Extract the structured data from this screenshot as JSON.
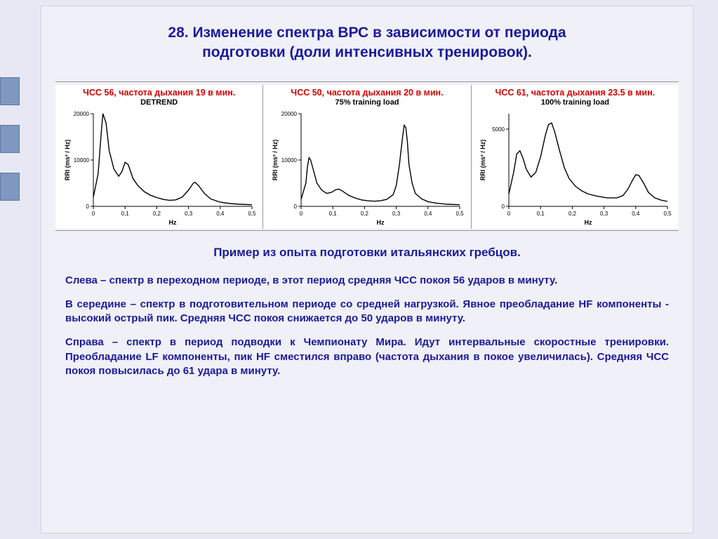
{
  "background_color": "#e8e8f4",
  "slide_bg": "#f0f0f8",
  "title_color": "#1a1a9a",
  "body_color": "#1a1a9a",
  "header_red": "#d00000",
  "title_line1": "28. Изменение спектра ВРС в зависимости от периода",
  "title_line2": "подготовки (доли интенсивных тренировок).",
  "subtitle": "Пример из опыта подготовки итальянских гребцов.",
  "para1": "Слева – спектр в переходном периоде, в этот период средняя ЧСС покоя 56 ударов в минуту.",
  "para2": "В середине – спектр в подготовительном периоде со средней нагрузкой. Явное преобладание HF компоненты - высокий острый пик. Средняя ЧСС покоя снижается до 50 ударов в минуту.",
  "para3": "Справа – спектр в период подводки к Чемпионату Мира. Идут интервальные скоростные тренировки. Преобладание LF компоненты, пик HF сместился вправо (частота дыхания в покое увеличилась). Средняя ЧСС покоя повысилась до 61 удара в минуту.",
  "charts": [
    {
      "header": "ЧСС 56, частота дыхания 19 в мин.",
      "sub": "DETREND",
      "type": "line",
      "xlabel": "Hz",
      "ylabel": "RRI (ms²  / Hz)",
      "xlim": [
        0,
        0.5
      ],
      "ylim": [
        0,
        20000
      ],
      "xticks": [
        0,
        0.1,
        0.2,
        0.3,
        0.4,
        0.5
      ],
      "xtick_labels": [
        "0",
        "0,1",
        "0,2",
        "0,3",
        "0,4",
        "0,5"
      ],
      "yticks": [
        0,
        10000,
        20000
      ],
      "ytick_labels": [
        "0",
        "10000",
        "20000"
      ],
      "line_color": "#000000",
      "line_width": 1.4,
      "background_color": "#ffffff",
      "axis_color": "#000000",
      "tick_fontsize": 8,
      "label_fontsize": 9,
      "data": [
        [
          0.0,
          2000
        ],
        [
          0.015,
          7000
        ],
        [
          0.025,
          16000
        ],
        [
          0.03,
          20000
        ],
        [
          0.04,
          18000
        ],
        [
          0.05,
          12000
        ],
        [
          0.065,
          8000
        ],
        [
          0.08,
          6500
        ],
        [
          0.09,
          7500
        ],
        [
          0.1,
          9500
        ],
        [
          0.11,
          9000
        ],
        [
          0.125,
          6000
        ],
        [
          0.14,
          4500
        ],
        [
          0.16,
          3200
        ],
        [
          0.18,
          2400
        ],
        [
          0.2,
          1900
        ],
        [
          0.22,
          1500
        ],
        [
          0.24,
          1300
        ],
        [
          0.26,
          1400
        ],
        [
          0.28,
          2000
        ],
        [
          0.3,
          3500
        ],
        [
          0.315,
          5000
        ],
        [
          0.32,
          5200
        ],
        [
          0.33,
          4600
        ],
        [
          0.35,
          2800
        ],
        [
          0.37,
          1600
        ],
        [
          0.4,
          900
        ],
        [
          0.43,
          600
        ],
        [
          0.46,
          450
        ],
        [
          0.5,
          350
        ]
      ]
    },
    {
      "header": "ЧСС 50, частота дыхания 20  в мин.",
      "sub": "75% training load",
      "type": "line",
      "xlabel": "Hz",
      "ylabel": "RRI (ms²  / Hz)",
      "xlim": [
        0,
        0.5
      ],
      "ylim": [
        0,
        20000
      ],
      "xticks": [
        0,
        0.1,
        0.2,
        0.3,
        0.4,
        0.5
      ],
      "xtick_labels": [
        "0",
        "0,1",
        "0,2",
        "0,3",
        "0,4",
        "0,5"
      ],
      "yticks": [
        0,
        10000,
        20000
      ],
      "ytick_labels": [
        "0",
        "10000",
        "20000"
      ],
      "line_color": "#000000",
      "line_width": 1.4,
      "background_color": "#ffffff",
      "axis_color": "#000000",
      "tick_fontsize": 8,
      "label_fontsize": 9,
      "data": [
        [
          0.0,
          1500
        ],
        [
          0.015,
          5000
        ],
        [
          0.02,
          8500
        ],
        [
          0.025,
          10500
        ],
        [
          0.03,
          10000
        ],
        [
          0.04,
          7500
        ],
        [
          0.05,
          5000
        ],
        [
          0.065,
          3500
        ],
        [
          0.08,
          2800
        ],
        [
          0.095,
          3000
        ],
        [
          0.11,
          3600
        ],
        [
          0.12,
          3700
        ],
        [
          0.13,
          3300
        ],
        [
          0.15,
          2400
        ],
        [
          0.17,
          1800
        ],
        [
          0.19,
          1400
        ],
        [
          0.21,
          1200
        ],
        [
          0.23,
          1100
        ],
        [
          0.25,
          1200
        ],
        [
          0.27,
          1500
        ],
        [
          0.29,
          2500
        ],
        [
          0.3,
          4500
        ],
        [
          0.31,
          9000
        ],
        [
          0.32,
          15000
        ],
        [
          0.325,
          17500
        ],
        [
          0.33,
          17000
        ],
        [
          0.335,
          14000
        ],
        [
          0.34,
          9000
        ],
        [
          0.35,
          5000
        ],
        [
          0.36,
          2800
        ],
        [
          0.38,
          1600
        ],
        [
          0.4,
          1000
        ],
        [
          0.43,
          650
        ],
        [
          0.46,
          450
        ],
        [
          0.5,
          350
        ]
      ]
    },
    {
      "header": "ЧСС 61, частота дыхания 23.5 в мин.",
      "sub": "100% training load",
      "type": "line",
      "xlabel": "Hz",
      "ylabel": "RRI (ms²  / Hz)",
      "xlim": [
        0,
        0.5
      ],
      "ylim": [
        0,
        6000
      ],
      "xticks": [
        0,
        0.1,
        0.2,
        0.3,
        0.4,
        0.5
      ],
      "xtick_labels": [
        "0",
        "0,1",
        "0,2",
        "0,3",
        "0,4",
        "0,5"
      ],
      "yticks": [
        0,
        5000
      ],
      "ytick_labels": [
        "0",
        "5000"
      ],
      "line_color": "#000000",
      "line_width": 1.4,
      "background_color": "#ffffff",
      "axis_color": "#000000",
      "tick_fontsize": 8,
      "label_fontsize": 9,
      "data": [
        [
          0.0,
          800
        ],
        [
          0.015,
          2200
        ],
        [
          0.025,
          3400
        ],
        [
          0.035,
          3600
        ],
        [
          0.045,
          3100
        ],
        [
          0.055,
          2400
        ],
        [
          0.07,
          1900
        ],
        [
          0.085,
          2200
        ],
        [
          0.1,
          3200
        ],
        [
          0.115,
          4600
        ],
        [
          0.125,
          5300
        ],
        [
          0.135,
          5400
        ],
        [
          0.145,
          4800
        ],
        [
          0.16,
          3600
        ],
        [
          0.175,
          2500
        ],
        [
          0.19,
          1800
        ],
        [
          0.21,
          1300
        ],
        [
          0.23,
          1000
        ],
        [
          0.25,
          800
        ],
        [
          0.28,
          650
        ],
        [
          0.31,
          550
        ],
        [
          0.34,
          550
        ],
        [
          0.36,
          700
        ],
        [
          0.375,
          1100
        ],
        [
          0.39,
          1700
        ],
        [
          0.4,
          2050
        ],
        [
          0.41,
          2000
        ],
        [
          0.425,
          1500
        ],
        [
          0.44,
          900
        ],
        [
          0.46,
          550
        ],
        [
          0.48,
          400
        ],
        [
          0.5,
          320
        ]
      ]
    }
  ]
}
